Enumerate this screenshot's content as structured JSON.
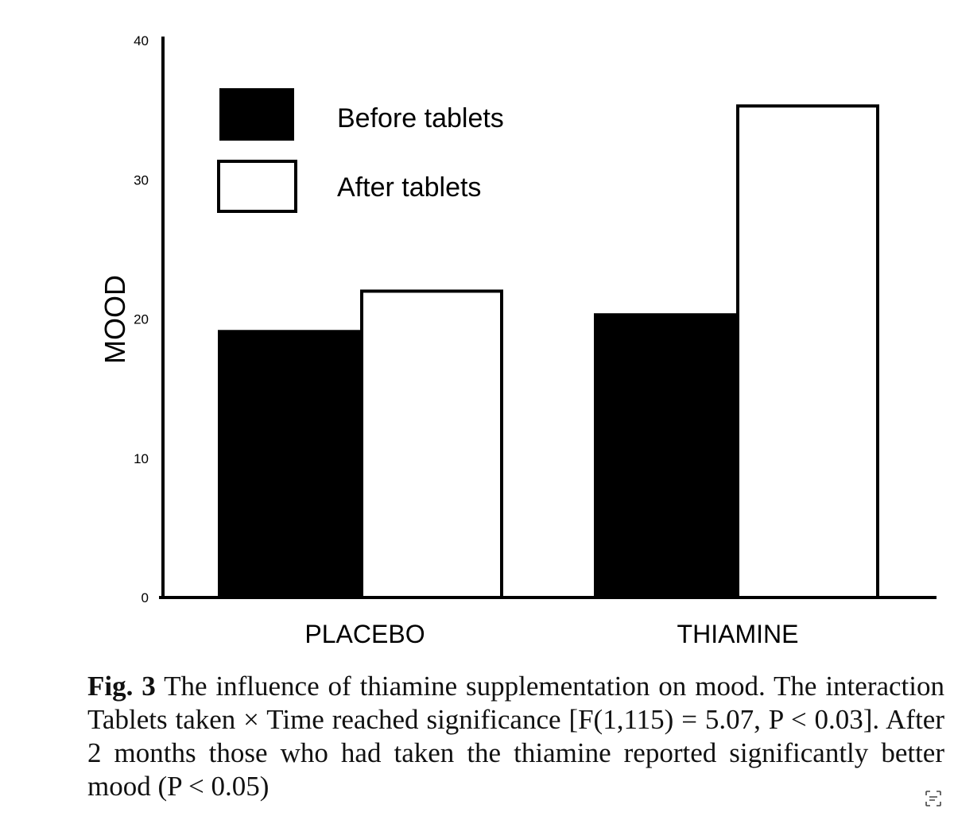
{
  "chart_data": {
    "type": "bar",
    "ylabel": "MOOD",
    "xlabel": "",
    "ylim": [
      0,
      40
    ],
    "yticks": [
      "0",
      "10",
      "20",
      "30",
      "40"
    ],
    "categories": [
      "PLACEBO",
      "THIAMINE"
    ],
    "series": [
      {
        "name": "Before tablets",
        "values": [
          19.1,
          20.3
        ],
        "fill": "#000000"
      },
      {
        "name": "After tablets",
        "values": [
          22.0,
          35.3
        ],
        "fill": "#ffffff"
      }
    ],
    "legend_position": "top-left"
  },
  "caption": {
    "label": "Fig. 3",
    "text": " The influence of thiamine supplementation on mood. The interaction Tablets taken × Time reached significance [F(1,115) = 5.07, P < 0.03]. After 2 months those who had taken the thiamine reported significantly better mood (P < 0.05)"
  },
  "colors": {
    "ink": "#000000",
    "background": "#ffffff"
  },
  "icons": {
    "corner": "lens-icon"
  }
}
